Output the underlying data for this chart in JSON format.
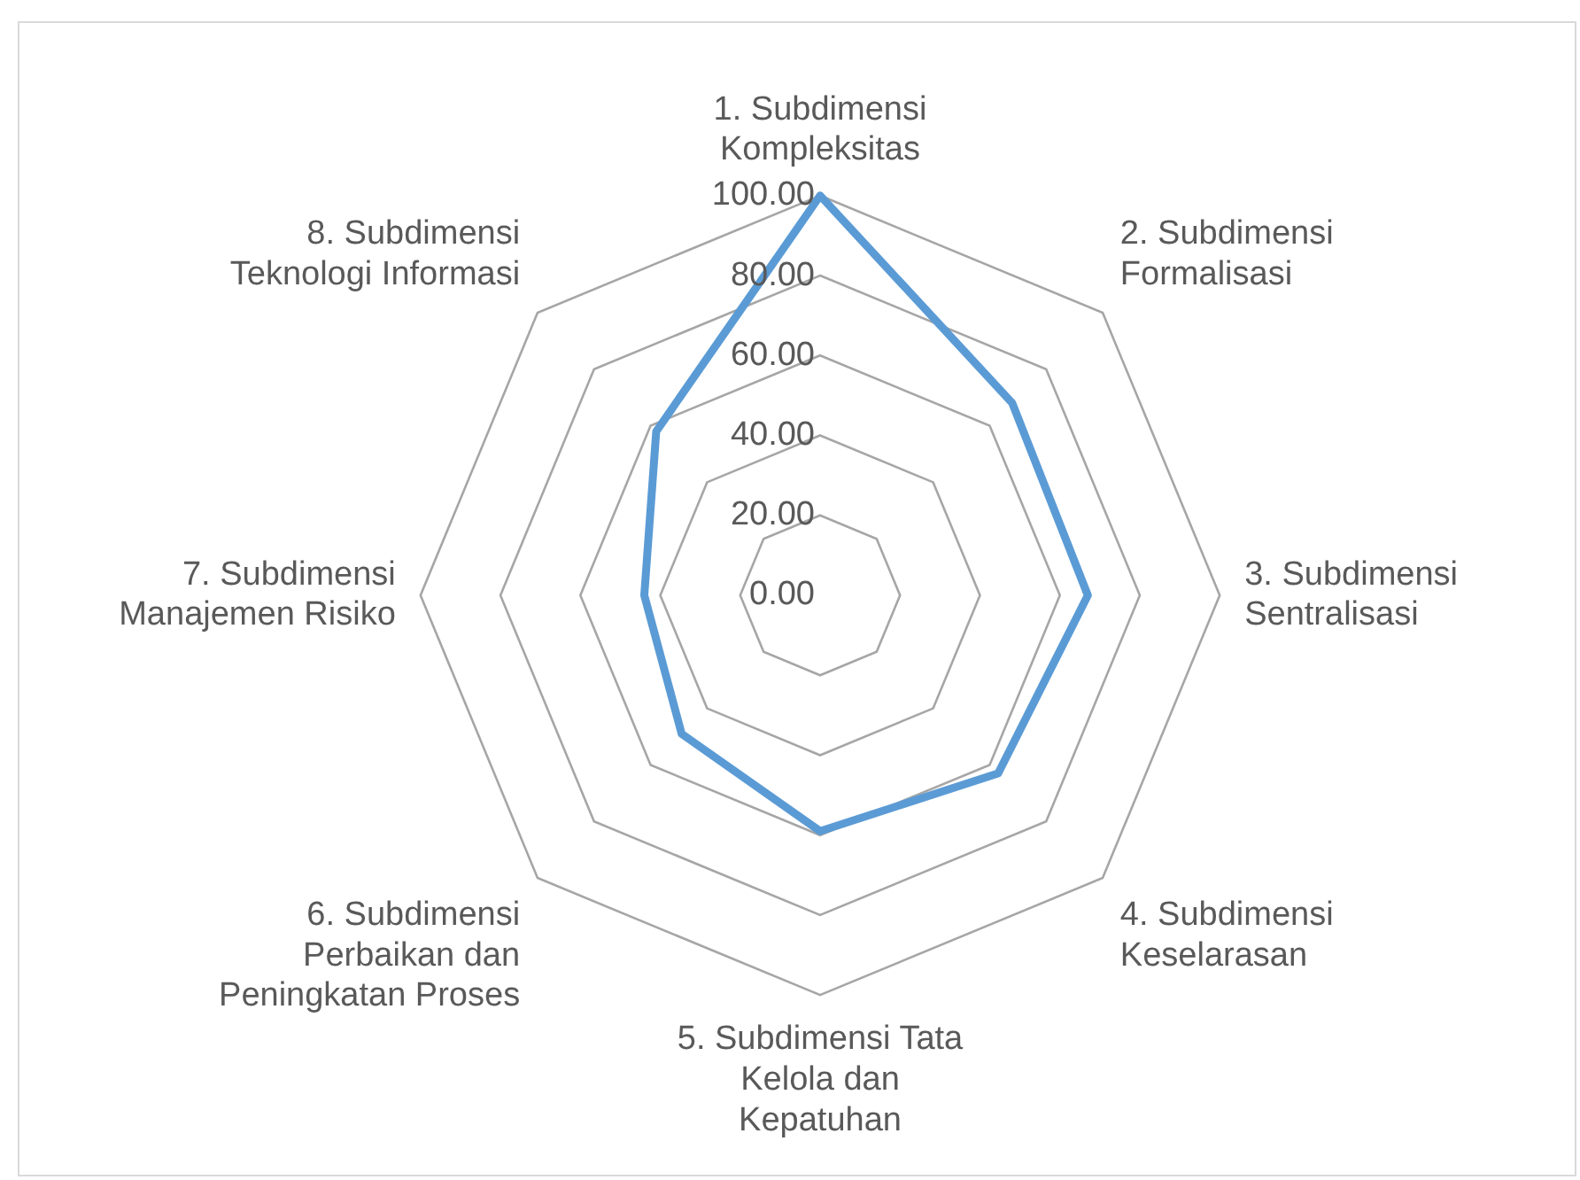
{
  "chart_data": {
    "type": "radar",
    "categories": [
      "1. Subdimensi Kompleksitas",
      "2. Subdimensi Formalisasi",
      "3. Subdimensi Sentralisasi",
      "4. Subdimensi Keselarasan",
      "5. Subdimensi Tata Kelola dan Kepatuhan",
      "6. Subdimensi Perbaikan dan Peningkatan Proses",
      "7. Subdimensi Manajemen Risiko",
      "8. Subdimensi Teknologi Informasi"
    ],
    "series": [
      {
        "color": "#5b9bd5",
        "values": [
          100,
          68,
          67,
          63,
          59,
          49,
          44,
          58
        ]
      }
    ],
    "ylim": [
      0,
      100
    ],
    "yticks": [
      {
        "value": 0,
        "label": "0.00"
      },
      {
        "value": 20,
        "label": "20.00"
      },
      {
        "value": 40,
        "label": "40.00"
      },
      {
        "value": 60,
        "label": "60.00"
      },
      {
        "value": 80,
        "label": "80.00"
      },
      {
        "value": 100,
        "label": "100.00"
      }
    ],
    "grid": true,
    "legend": false,
    "marker": "none"
  }
}
